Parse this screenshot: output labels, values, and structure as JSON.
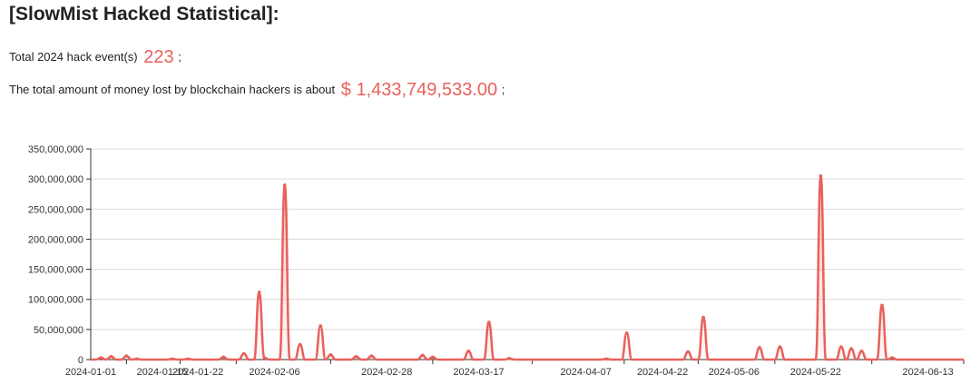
{
  "heading": "[SlowMist Hacked Statistical]:",
  "stats": {
    "events_prefix": "Total 2024 hack event(s)",
    "events_value": "223",
    "events_suffix": ";",
    "amount_prefix": "The total amount of money lost by blockchain hackers is about",
    "amount_value": "$ 1,433,749,533.00",
    "amount_suffix": ";"
  },
  "colors": {
    "accent": "#e8615b",
    "grid": "#d9d9d9",
    "axis": "#333333"
  },
  "chart_data": {
    "type": "area",
    "title": "",
    "xlabel": "",
    "ylabel": "",
    "grid": true,
    "legend": "none",
    "ylim": [
      0,
      350000000
    ],
    "yticks": [
      0,
      50000000,
      100000000,
      150000000,
      200000000,
      250000000,
      300000000,
      350000000
    ],
    "ytick_labels": [
      "0",
      "50,000,000",
      "100,000,000",
      "150,000,000",
      "200,000,000",
      "250,000,000",
      "300,000,000",
      "350,000,000"
    ],
    "xlim": [
      "2024-01-01",
      "2024-06-20"
    ],
    "xticks": [
      "2024-01-01",
      "2024-01-15",
      "2024-01-22",
      "2024-02-06",
      "2024-02-28",
      "2024-03-17",
      "2024-04-07",
      "2024-04-22",
      "2024-05-06",
      "2024-05-22",
      "2024-06-13"
    ],
    "series": [
      {
        "values": [
          [
            "2024-01-03",
            3000000
          ],
          [
            "2024-01-05",
            5000000
          ],
          [
            "2024-01-08",
            6000000
          ],
          [
            "2024-01-10",
            1000000
          ],
          [
            "2024-01-17",
            1000000
          ],
          [
            "2024-01-20",
            1000000
          ],
          [
            "2024-01-27",
            4000000
          ],
          [
            "2024-01-31",
            10000000
          ],
          [
            "2024-02-03",
            112000000
          ],
          [
            "2024-02-04",
            3000000
          ],
          [
            "2024-02-08",
            290000000
          ],
          [
            "2024-02-11",
            25000000
          ],
          [
            "2024-02-15",
            56000000
          ],
          [
            "2024-02-17",
            8000000
          ],
          [
            "2024-02-22",
            5000000
          ],
          [
            "2024-02-25",
            6000000
          ],
          [
            "2024-03-06",
            7000000
          ],
          [
            "2024-03-08",
            4000000
          ],
          [
            "2024-03-15",
            14000000
          ],
          [
            "2024-03-19",
            62000000
          ],
          [
            "2024-03-23",
            2000000
          ],
          [
            "2024-04-11",
            1000000
          ],
          [
            "2024-04-15",
            44000000
          ],
          [
            "2024-04-27",
            13000000
          ],
          [
            "2024-04-30",
            70000000
          ],
          [
            "2024-05-11",
            20000000
          ],
          [
            "2024-05-15",
            21000000
          ],
          [
            "2024-05-23",
            305000000
          ],
          [
            "2024-05-27",
            21000000
          ],
          [
            "2024-05-29",
            18000000
          ],
          [
            "2024-05-31",
            14000000
          ],
          [
            "2024-06-04",
            90000000
          ],
          [
            "2024-06-06",
            3000000
          ]
        ]
      }
    ]
  }
}
